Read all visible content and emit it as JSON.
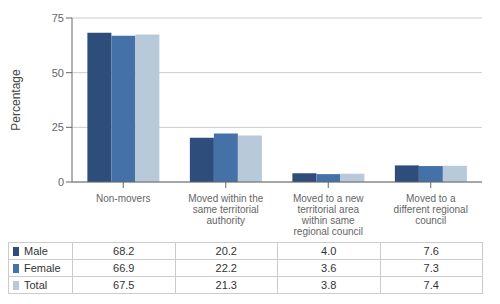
{
  "chart_data": {
    "type": "bar",
    "categories": [
      "Non-movers",
      "Moved within the\nsame territorial\nauthority",
      "Moved to a new\nterritorial area\nwithin same\nregional council",
      "Moved to a\ndifferent regional\ncouncil"
    ],
    "series": [
      {
        "name": "Male",
        "color": "#2E4D7B",
        "values": [
          68.2,
          20.2,
          4.0,
          7.6
        ],
        "value_labels": [
          "68.2",
          "20.2",
          "4.0",
          "7.6"
        ]
      },
      {
        "name": "Female",
        "color": "#4472A8",
        "values": [
          66.9,
          22.2,
          3.6,
          7.3
        ],
        "value_labels": [
          "66.9",
          "22.2",
          "3.6",
          "7.3"
        ]
      },
      {
        "name": "Total",
        "color": "#B8C9D9",
        "values": [
          67.5,
          21.3,
          3.8,
          7.4
        ],
        "value_labels": [
          "67.5",
          "21.3",
          "3.8",
          "7.4"
        ]
      }
    ],
    "ylabel": "Percentage",
    "ylim": [
      0,
      75
    ],
    "yticks": [
      0,
      25,
      50,
      75
    ],
    "grid": true
  }
}
